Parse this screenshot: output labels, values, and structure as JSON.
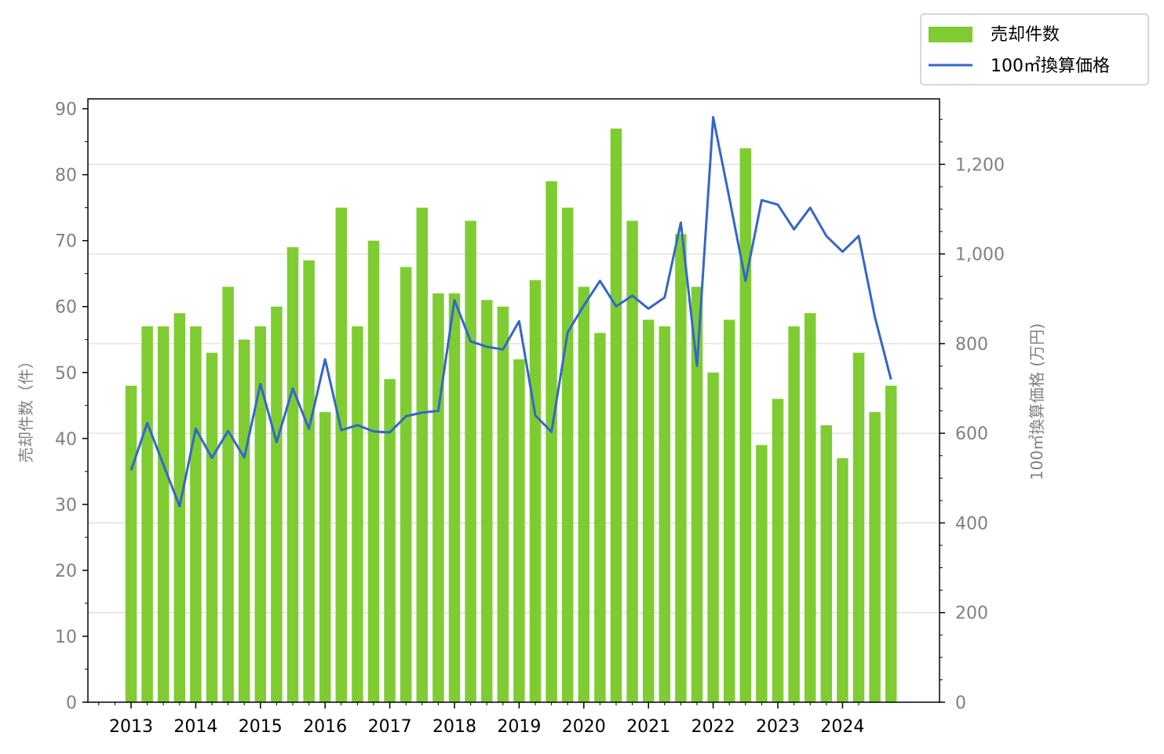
{
  "chart_data": {
    "type": "bar",
    "x": [
      2013.0,
      2013.25,
      2013.5,
      2013.75,
      2014.0,
      2014.25,
      2014.5,
      2014.75,
      2015.0,
      2015.25,
      2015.5,
      2015.75,
      2016.0,
      2016.25,
      2016.5,
      2016.75,
      2017.0,
      2017.25,
      2017.5,
      2017.75,
      2018.0,
      2018.25,
      2018.5,
      2018.75,
      2019.0,
      2019.25,
      2019.5,
      2019.75,
      2020.0,
      2020.25,
      2020.5,
      2020.75,
      2021.0,
      2021.25,
      2021.5,
      2021.75,
      2022.0,
      2022.25,
      2022.5,
      2022.75,
      2023.0,
      2023.25,
      2023.5,
      2023.75,
      2024.0,
      2024.25,
      2024.5,
      2024.75
    ],
    "x_ticks": [
      "2013",
      "2014",
      "2015",
      "2016",
      "2017",
      "2018",
      "2019",
      "2020",
      "2021",
      "2022",
      "2023",
      "2024"
    ],
    "series": [
      {
        "name": "売却件数",
        "kind": "bar",
        "axis": "left",
        "color": "#7fcc32",
        "values": [
          48,
          57,
          57,
          59,
          57,
          53,
          63,
          55,
          57,
          60,
          69,
          67,
          44,
          75,
          57,
          70,
          49,
          66,
          75,
          62,
          62,
          73,
          61,
          60,
          52,
          64,
          79,
          75,
          63,
          56,
          87,
          73,
          58,
          57,
          71,
          63,
          50,
          58,
          84,
          39,
          46,
          57,
          59,
          42,
          37,
          53,
          44,
          48
        ]
      },
      {
        "name": "100㎡換算価格",
        "kind": "line",
        "axis": "right",
        "color": "#3366cc",
        "values": [
          517,
          623,
          530,
          437,
          610,
          545,
          605,
          546,
          710,
          580,
          700,
          610,
          765,
          607,
          618,
          604,
          602,
          638,
          646,
          650,
          897,
          805,
          793,
          787,
          850,
          640,
          603,
          825,
          885,
          940,
          883,
          907,
          878,
          903,
          1070,
          750,
          1305,
          1125,
          940,
          1120,
          1110,
          1055,
          1103,
          1040,
          1005,
          1040,
          860,
          720
        ]
      }
    ],
    "y_left": {
      "label": "売却件数（件）",
      "lim": [
        0,
        91.5
      ],
      "ticks": [
        "0",
        "10",
        "20",
        "30",
        "40",
        "50",
        "60",
        "70",
        "80",
        "90"
      ]
    },
    "y_right": {
      "label": "100㎡換算価格 (万円)",
      "lim": [
        0,
        1346
      ],
      "ticks": [
        "0",
        "200",
        "400",
        "600",
        "800",
        "1,000",
        "1,200"
      ]
    },
    "grid": "horizontal, right axis",
    "legend": "top-right, outside"
  }
}
